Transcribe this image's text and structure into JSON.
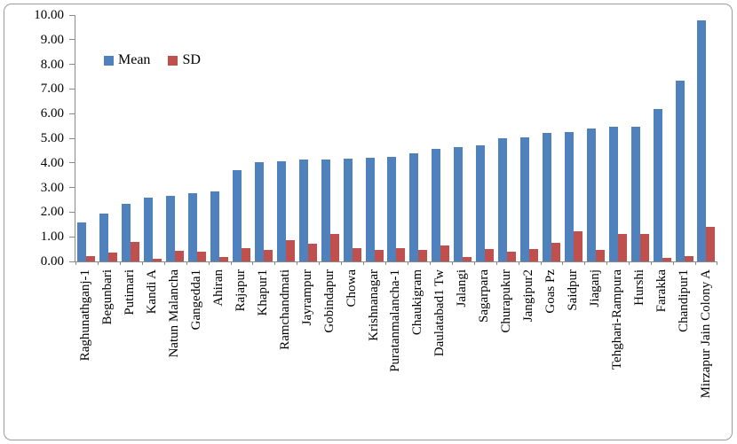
{
  "legend": {
    "mean_label": "Mean",
    "sd_label": "SD"
  },
  "axis": {
    "ytick_labels": [
      "0.00",
      "1.00",
      "2.00",
      "3.00",
      "4.00",
      "5.00",
      "6.00",
      "7.00",
      "8.00",
      "9.00",
      "10.00"
    ]
  },
  "colors": {
    "mean": "#4F81BD",
    "sd": "#C0504D",
    "axis": "#8a8a8a"
  },
  "chart_data": {
    "type": "bar",
    "title": "",
    "xlabel": "",
    "ylabel": "",
    "ylim": [
      0,
      10
    ],
    "ytick_step": 1,
    "grid": false,
    "legend_position": "top-inside",
    "categories": [
      "Raghunathganj-1",
      "Begunbari",
      "Putimari",
      "Kandi A",
      "Natun Malancha",
      "Gangedda1",
      "Ahiran",
      "Rajapur",
      "Khapur1",
      "Ramchandmati",
      "Jayrampur",
      "Gobindapur",
      "Chowa",
      "Krishnanagar",
      "Puratanmalancha-1",
      "Chaukigram",
      "Daulatabad1 Tw",
      "Jalangi",
      "Sagarpara",
      "Churapukur",
      "Jangipur2",
      "Goas Pz",
      "Saidpur",
      "Jiaganj",
      "Tehghari-Rampura",
      "Hurshi",
      "Farakka",
      "Chandipur1",
      "Mirzapur Jain Colony A"
    ],
    "series": [
      {
        "name": "Mean",
        "color": "#4F81BD",
        "values": [
          1.58,
          1.94,
          2.33,
          2.59,
          2.65,
          2.78,
          2.86,
          3.7,
          4.02,
          4.08,
          4.12,
          4.15,
          4.18,
          4.2,
          4.23,
          4.4,
          4.57,
          4.65,
          4.7,
          5.0,
          5.05,
          5.2,
          5.25,
          5.4,
          5.46,
          5.46,
          6.19,
          7.33,
          9.79
        ]
      },
      {
        "name": "SD",
        "color": "#C0504D",
        "values": [
          0.23,
          0.36,
          0.79,
          0.12,
          0.45,
          0.4,
          0.18,
          0.53,
          0.46,
          0.87,
          0.72,
          1.12,
          0.54,
          0.46,
          0.54,
          0.48,
          0.64,
          0.18,
          0.51,
          0.4,
          0.49,
          0.74,
          1.21,
          0.46,
          1.1,
          1.1,
          0.14,
          0.2,
          1.39
        ]
      }
    ]
  }
}
